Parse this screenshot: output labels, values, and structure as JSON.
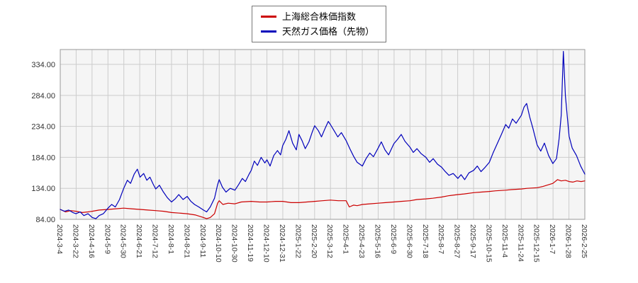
{
  "page": {
    "background": "#ffffff"
  },
  "legend": {
    "items": [
      {
        "label": "上海総合株価指数",
        "color": "#cc0000"
      },
      {
        "label": "天然ガス価格（先物）",
        "color": "#0000bb"
      }
    ]
  },
  "chart_data": {
    "type": "line",
    "title": "",
    "xlabel": "",
    "ylabel": "",
    "ylim": [
      84,
      358
    ],
    "grid": true,
    "legend_position": "top-center",
    "plot_bg": "#f5f5f5",
    "grid_color": "#cccccc",
    "border_color": "#999999",
    "tick_label_color": "#333333",
    "yticks": [
      {
        "value": 84,
        "label": "84.00"
      },
      {
        "value": 134,
        "label": "134.00"
      },
      {
        "value": 184,
        "label": "184.00"
      },
      {
        "value": 234,
        "label": "234.00"
      },
      {
        "value": 284,
        "label": "284.00"
      },
      {
        "value": 334,
        "label": "334.00"
      }
    ],
    "categories": [
      "2024-3-4",
      "2024-3-22",
      "2024-4-16",
      "2024-5-9",
      "2024-5-30",
      "2024-6-21",
      "2024-7-12",
      "2024-8-1",
      "2024-8-21",
      "2024-9-11",
      "2024-10-10",
      "2024-10-30",
      "2024-11-19",
      "2024-12-10",
      "2024-12-31",
      "2025-1-22",
      "2025-2-20",
      "2025-3-12",
      "2025-4-1",
      "2025-4-23",
      "2025-5-16",
      "2025-6-9",
      "2025-6-30",
      "2025-7-18",
      "2025-8-7",
      "2025-8-27",
      "2025-9-17",
      "2025-10-15",
      "2025-11-4",
      "2025-11-24",
      "2025-12-15",
      "2026-1-7",
      "2026-1-28",
      "2026-2-25"
    ],
    "series": [
      {
        "name": "上海総合株価指数",
        "id": "shanghai-composite",
        "color": "#cc0000",
        "points": [
          [
            0,
            100
          ],
          [
            1.0,
            96
          ],
          [
            2.0,
            98
          ],
          [
            3.0,
            97
          ],
          [
            4.2,
            95
          ],
          [
            5.3,
            96
          ],
          [
            6.1,
            97
          ],
          [
            7.4,
            99
          ],
          [
            9.1,
            100
          ],
          [
            10.6,
            101
          ],
          [
            12.1,
            102
          ],
          [
            13.6,
            101
          ],
          [
            15.2,
            100
          ],
          [
            16.7,
            99
          ],
          [
            18.2,
            98
          ],
          [
            19.7,
            97
          ],
          [
            21.2,
            95
          ],
          [
            22.7,
            94
          ],
          [
            24.2,
            93
          ],
          [
            25.8,
            91
          ],
          [
            27.3,
            87
          ],
          [
            27.9,
            85
          ],
          [
            28.6,
            87
          ],
          [
            29.4,
            93
          ],
          [
            30.0,
            110
          ],
          [
            30.3,
            114
          ],
          [
            31.0,
            108
          ],
          [
            32.0,
            110
          ],
          [
            33.3,
            109
          ],
          [
            34.5,
            112
          ],
          [
            36.4,
            113
          ],
          [
            38.0,
            112
          ],
          [
            39.4,
            112
          ],
          [
            41.0,
            113
          ],
          [
            42.4,
            113
          ],
          [
            44.0,
            111
          ],
          [
            45.5,
            111
          ],
          [
            47.0,
            112
          ],
          [
            48.5,
            113
          ],
          [
            50.0,
            114
          ],
          [
            51.5,
            115
          ],
          [
            53.0,
            114
          ],
          [
            54.5,
            114
          ],
          [
            55.1,
            104
          ],
          [
            55.9,
            107
          ],
          [
            56.6,
            106
          ],
          [
            57.6,
            108
          ],
          [
            59.0,
            109
          ],
          [
            60.6,
            110
          ],
          [
            62.0,
            111
          ],
          [
            63.6,
            112
          ],
          [
            65.0,
            113
          ],
          [
            66.7,
            114
          ],
          [
            68.0,
            116
          ],
          [
            69.7,
            117
          ],
          [
            71.0,
            118
          ],
          [
            72.7,
            120
          ],
          [
            74.0,
            122
          ],
          [
            75.8,
            124
          ],
          [
            77.0,
            125
          ],
          [
            78.8,
            127
          ],
          [
            80.2,
            128
          ],
          [
            81.8,
            129
          ],
          [
            83.0,
            130
          ],
          [
            84.9,
            131
          ],
          [
            86.0,
            132
          ],
          [
            87.9,
            133
          ],
          [
            89.0,
            134
          ],
          [
            90.9,
            135
          ],
          [
            92.0,
            137
          ],
          [
            93.9,
            142
          ],
          [
            94.8,
            148
          ],
          [
            95.5,
            146
          ],
          [
            96.3,
            147
          ],
          [
            97.0,
            145
          ],
          [
            97.7,
            144
          ],
          [
            98.5,
            146
          ],
          [
            99.3,
            145
          ],
          [
            100,
            146
          ]
        ]
      },
      {
        "name": "天然ガス価格（先物）",
        "id": "natural-gas-futures",
        "color": "#0000bb",
        "points": [
          [
            0,
            100
          ],
          [
            0.8,
            97
          ],
          [
            1.6,
            99
          ],
          [
            2.4,
            95
          ],
          [
            3.0,
            93
          ],
          [
            3.8,
            96
          ],
          [
            4.5,
            90
          ],
          [
            5.3,
            93
          ],
          [
            6.1,
            87
          ],
          [
            6.8,
            85
          ],
          [
            7.4,
            90
          ],
          [
            8.2,
            93
          ],
          [
            9.1,
            102
          ],
          [
            9.8,
            108
          ],
          [
            10.5,
            104
          ],
          [
            11.3,
            116
          ],
          [
            12.1,
            134
          ],
          [
            12.8,
            147
          ],
          [
            13.4,
            142
          ],
          [
            14.1,
            157
          ],
          [
            14.7,
            165
          ],
          [
            15.2,
            152
          ],
          [
            15.9,
            158
          ],
          [
            16.5,
            147
          ],
          [
            17.1,
            152
          ],
          [
            17.7,
            141
          ],
          [
            18.2,
            133
          ],
          [
            18.9,
            139
          ],
          [
            19.6,
            129
          ],
          [
            20.4,
            119
          ],
          [
            21.2,
            112
          ],
          [
            21.9,
            117
          ],
          [
            22.6,
            124
          ],
          [
            23.4,
            116
          ],
          [
            24.2,
            121
          ],
          [
            24.9,
            113
          ],
          [
            25.6,
            108
          ],
          [
            26.4,
            104
          ],
          [
            27.3,
            99
          ],
          [
            27.9,
            96
          ],
          [
            28.6,
            104
          ],
          [
            29.4,
            118
          ],
          [
            30.0,
            140
          ],
          [
            30.3,
            148
          ],
          [
            30.9,
            136
          ],
          [
            31.6,
            128
          ],
          [
            32.4,
            134
          ],
          [
            33.3,
            131
          ],
          [
            34.0,
            140
          ],
          [
            34.7,
            150
          ],
          [
            35.3,
            145
          ],
          [
            36.0,
            157
          ],
          [
            36.4,
            163
          ],
          [
            37.0,
            178
          ],
          [
            37.6,
            171
          ],
          [
            38.3,
            184
          ],
          [
            39.0,
            175
          ],
          [
            39.4,
            180
          ],
          [
            40.0,
            170
          ],
          [
            40.7,
            187
          ],
          [
            41.4,
            195
          ],
          [
            42.0,
            188
          ],
          [
            42.4,
            203
          ],
          [
            43.0,
            213
          ],
          [
            43.6,
            227
          ],
          [
            44.3,
            207
          ],
          [
            45.0,
            196
          ],
          [
            45.5,
            221
          ],
          [
            46.1,
            211
          ],
          [
            46.7,
            198
          ],
          [
            47.4,
            209
          ],
          [
            48.0,
            224
          ],
          [
            48.5,
            235
          ],
          [
            49.2,
            227
          ],
          [
            49.8,
            217
          ],
          [
            50.5,
            231
          ],
          [
            51.1,
            242
          ],
          [
            51.5,
            237
          ],
          [
            52.2,
            227
          ],
          [
            52.9,
            217
          ],
          [
            53.6,
            224
          ],
          [
            54.5,
            211
          ],
          [
            55.2,
            198
          ],
          [
            55.9,
            186
          ],
          [
            56.6,
            176
          ],
          [
            57.6,
            170
          ],
          [
            58.3,
            182
          ],
          [
            59.0,
            191
          ],
          [
            59.7,
            185
          ],
          [
            60.6,
            199
          ],
          [
            61.2,
            209
          ],
          [
            61.9,
            196
          ],
          [
            62.6,
            188
          ],
          [
            63.6,
            206
          ],
          [
            64.3,
            213
          ],
          [
            65.0,
            221
          ],
          [
            65.7,
            210
          ],
          [
            66.7,
            200
          ],
          [
            67.3,
            192
          ],
          [
            68.0,
            198
          ],
          [
            68.8,
            190
          ],
          [
            69.7,
            184
          ],
          [
            70.4,
            176
          ],
          [
            71.1,
            182
          ],
          [
            71.9,
            173
          ],
          [
            72.7,
            168
          ],
          [
            73.4,
            161
          ],
          [
            74.1,
            155
          ],
          [
            74.9,
            158
          ],
          [
            75.8,
            150
          ],
          [
            76.4,
            156
          ],
          [
            77.1,
            148
          ],
          [
            77.9,
            159
          ],
          [
            78.8,
            163
          ],
          [
            79.5,
            170
          ],
          [
            80.2,
            161
          ],
          [
            81.0,
            168
          ],
          [
            81.8,
            176
          ],
          [
            82.5,
            191
          ],
          [
            83.3,
            206
          ],
          [
            84.1,
            221
          ],
          [
            84.9,
            237
          ],
          [
            85.5,
            231
          ],
          [
            86.2,
            246
          ],
          [
            86.9,
            239
          ],
          [
            87.9,
            252
          ],
          [
            88.4,
            265
          ],
          [
            88.9,
            271
          ],
          [
            89.5,
            249
          ],
          [
            90.1,
            231
          ],
          [
            90.9,
            204
          ],
          [
            91.6,
            194
          ],
          [
            92.3,
            207
          ],
          [
            93.1,
            187
          ],
          [
            93.9,
            174
          ],
          [
            94.6,
            182
          ],
          [
            95.1,
            214
          ],
          [
            95.5,
            252
          ],
          [
            95.9,
            355
          ],
          [
            96.3,
            283
          ],
          [
            97.0,
            218
          ],
          [
            97.6,
            199
          ],
          [
            98.4,
            187
          ],
          [
            99.2,
            170
          ],
          [
            100,
            157
          ]
        ]
      }
    ]
  }
}
